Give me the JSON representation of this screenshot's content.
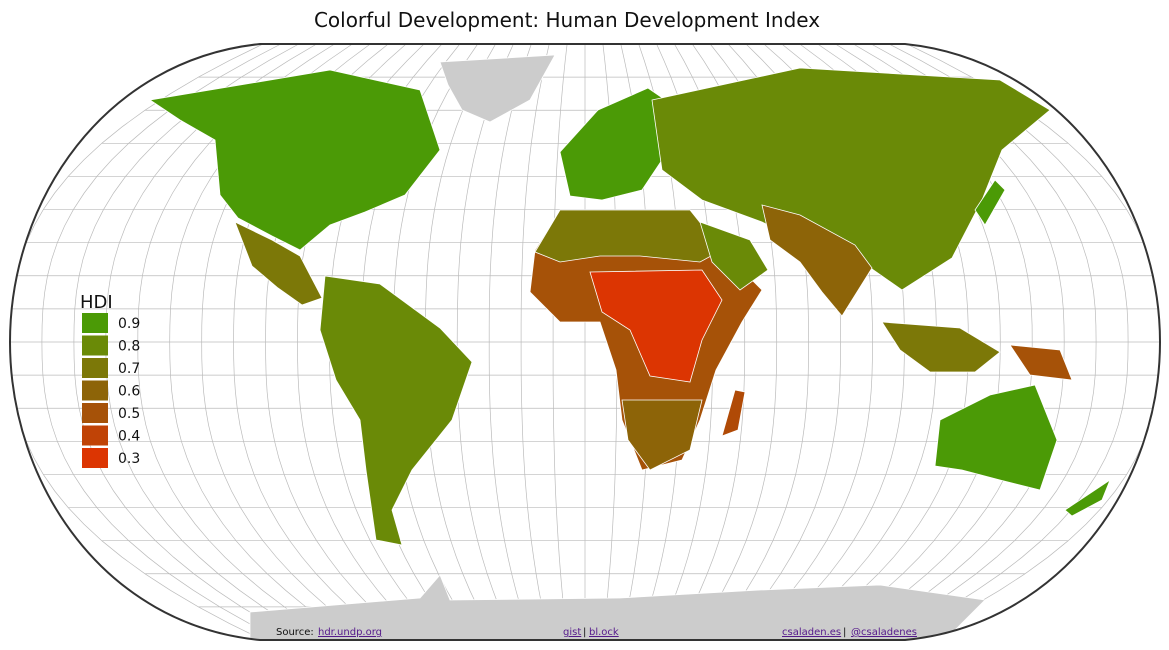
{
  "title": "Colorful Development: Human Development Index",
  "legend": {
    "title": "HDI",
    "items": [
      {
        "value": 0.9,
        "color": "#4b9a06"
      },
      {
        "value": 0.8,
        "color": "#6a8a07"
      },
      {
        "value": 0.7,
        "color": "#7c7808"
      },
      {
        "value": 0.6,
        "color": "#8d6408"
      },
      {
        "value": 0.5,
        "color": "#a65208"
      },
      {
        "value": 0.4,
        "color": "#c04306"
      },
      {
        "value": 0.3,
        "color": "#dc3502"
      }
    ]
  },
  "footer": {
    "source_label": "Source:",
    "source_link": "hdr.undp.org",
    "gist": "gist",
    "separator_1": "|",
    "block": "bl.ock",
    "site": "csaladen.es",
    "separator_2": "|",
    "twitter": "@csaladenes"
  }
}
